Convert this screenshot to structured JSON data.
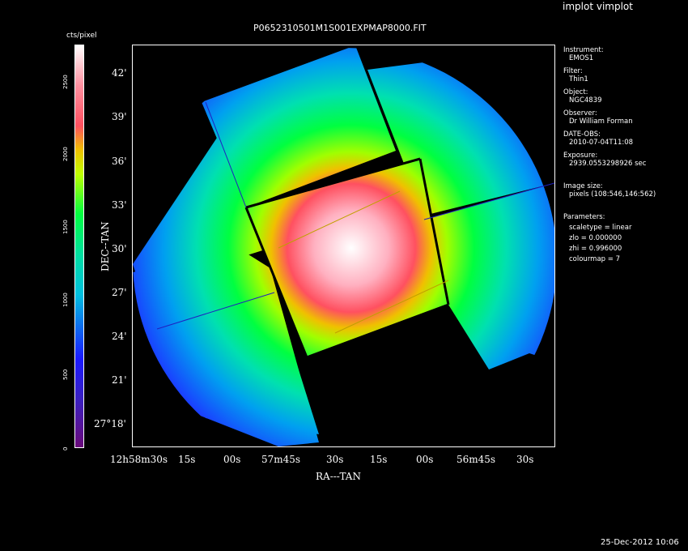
{
  "window": {
    "menu_label": "implot vimplot",
    "footer_timestamp": "25-Dec-2012 10:06"
  },
  "plot": {
    "title": "P0652310501M1S001EXPMAP8000.FIT",
    "xlabel": "RA---TAN",
    "ylabel": "DEC--TAN",
    "y_ticks": [
      "42'",
      "39'",
      "36'",
      "33'",
      "30'",
      "27'",
      "24'",
      "21'",
      "27°18'"
    ],
    "x_ticks": [
      "12h58m30s",
      "15s",
      "00s",
      "57m45s",
      "30s",
      "15s",
      "00s",
      "56m45s",
      "30s"
    ]
  },
  "colorbar": {
    "label": "cts/pixel",
    "ticks": [
      "0",
      "500",
      "1000",
      "1500",
      "2000",
      "2500"
    ],
    "colormap": "rainbow",
    "colors": [
      "#6a0a7a",
      "#1a1aff",
      "#00e0d0",
      "#00ff40",
      "#f0ff00",
      "#ff3040",
      "#ffffff"
    ]
  },
  "info": {
    "instrument_label": "Instrument:",
    "instrument": "EMOS1",
    "filter_label": "Filter:",
    "filter": "Thin1",
    "object_label": "Object:",
    "object": "NGC4839",
    "observer_label": "Observer:",
    "observer": "Dr William Forman",
    "date_label": "DATE-OBS:",
    "date": "2010-07-04T11:08",
    "exposure_label": "Exposure:",
    "exposure": "2939.0553298926 sec",
    "image_size_label": "Image size:",
    "image_size": "pixels (108:546,146:562)",
    "parameters_label": "Parameters:",
    "scaletype": "scaletype = linear",
    "zlo": "zlo = 0.000000",
    "zhi": "zhi = 0.996000",
    "colourmap": "colourmap =   7"
  }
}
